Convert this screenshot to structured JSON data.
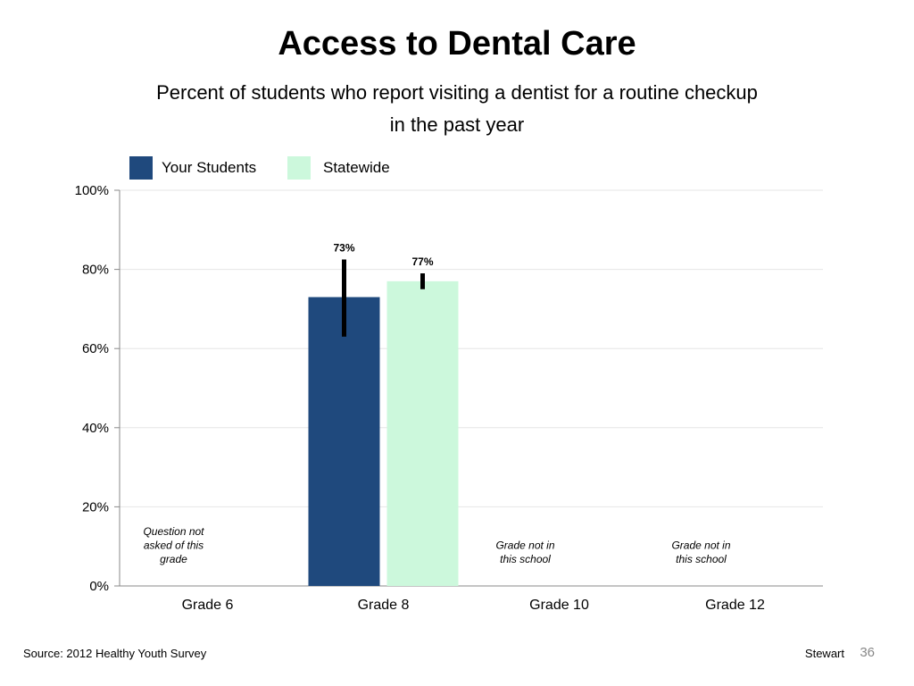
{
  "header": {
    "title": "Access to Dental Care",
    "subtitle_line1": "Percent of students who report visiting a dentist for a routine checkup",
    "subtitle_line2": "in the past year"
  },
  "chart_data": {
    "type": "bar",
    "categories": [
      "Grade 6",
      "Grade 8",
      "Grade 10",
      "Grade 12"
    ],
    "series": [
      {
        "name": "Your Students",
        "color": "#1f497d",
        "values": [
          null,
          73,
          null,
          null
        ],
        "error_low": [
          null,
          63,
          null,
          null
        ],
        "error_high": [
          null,
          82.5,
          null,
          null
        ]
      },
      {
        "name": "Statewide",
        "color": "#ccf8dc",
        "values": [
          null,
          77,
          null,
          null
        ],
        "error_low": [
          null,
          75,
          null,
          null
        ],
        "error_high": [
          null,
          79,
          null,
          null
        ]
      }
    ],
    "data_labels": [
      {
        "category": "Grade 8",
        "series": "Your Students",
        "text": "73%"
      },
      {
        "category": "Grade 8",
        "series": "Statewide",
        "text": "77%"
      }
    ],
    "category_notes": [
      {
        "category": "Grade 6",
        "lines": [
          "Question not",
          "asked of this",
          "grade"
        ]
      },
      {
        "category": "Grade 10",
        "lines": [
          "Grade not in",
          "this school"
        ]
      },
      {
        "category": "Grade 12",
        "lines": [
          "Grade not in",
          "this school"
        ]
      }
    ],
    "yticks": [
      "0%",
      "20%",
      "40%",
      "60%",
      "80%",
      "100%"
    ],
    "ylim": [
      0,
      100
    ],
    "grid": true,
    "legend_position": "top-left"
  },
  "footer": {
    "source": "Source: 2012 Healthy Youth Survey",
    "author": "Stewart",
    "page": "36"
  }
}
